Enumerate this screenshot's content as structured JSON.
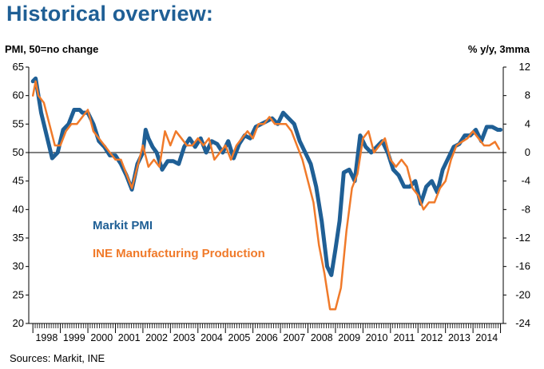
{
  "title": "Historical overview:",
  "source": "Sources: Markit, INE",
  "chart_data": {
    "type": "line",
    "left_axis_label": "PMI, 50=no change",
    "right_axis_label": "% y/y, 3mma",
    "left_ticks": [
      "65",
      "60",
      "55",
      "50",
      "45",
      "40",
      "35",
      "30",
      "25",
      "20"
    ],
    "right_ticks": [
      "12",
      "8",
      "4",
      "0",
      "-4",
      "-8",
      "-12",
      "-16",
      "-20",
      "-24"
    ],
    "ylim_left": [
      20,
      65
    ],
    "ylim_right": [
      -24,
      12
    ],
    "reference_line_left": 50,
    "x_labels": [
      "1998",
      "1999",
      "2000",
      "2001",
      "2002",
      "2003",
      "2004",
      "2005",
      "2006",
      "2007",
      "2008",
      "2009",
      "2010",
      "2011",
      "2012",
      "2013",
      "2014"
    ],
    "series": [
      {
        "name": "Markit PMI",
        "axis": "left",
        "color": "#1f5f95",
        "x": [
          1998.0,
          1998.1,
          1998.2,
          1998.3,
          1998.5,
          1998.7,
          1998.9,
          1999.0,
          1999.1,
          1999.3,
          1999.5,
          1999.7,
          1999.8,
          2000.0,
          2000.2,
          2000.4,
          2000.6,
          2000.8,
          2001.0,
          2001.2,
          2001.4,
          2001.6,
          2001.8,
          2002.0,
          2002.1,
          2002.2,
          2002.35,
          2002.5,
          2002.7,
          2002.9,
          2003.1,
          2003.3,
          2003.5,
          2003.7,
          2003.9,
          2004.1,
          2004.3,
          2004.5,
          2004.7,
          2004.9,
          2005.1,
          2005.3,
          2005.5,
          2005.7,
          2005.9,
          2006.1,
          2006.3,
          2006.5,
          2006.7,
          2006.9,
          2007.1,
          2007.3,
          2007.5,
          2007.7,
          2007.9,
          2008.1,
          2008.3,
          2008.5,
          2008.7,
          2008.85,
          2009.0,
          2009.15,
          2009.3,
          2009.5,
          2009.7,
          2009.9,
          2010.1,
          2010.3,
          2010.5,
          2010.7,
          2010.9,
          2011.1,
          2011.3,
          2011.5,
          2011.7,
          2011.9,
          2012.1,
          2012.3,
          2012.5,
          2012.7,
          2012.9,
          2013.1,
          2013.3,
          2013.5,
          2013.7,
          2013.9,
          2014.1,
          2014.3,
          2014.5,
          2014.7,
          2014.9,
          2015.0
        ],
        "values": [
          62.5,
          63,
          60,
          57,
          53,
          49,
          50,
          52,
          54,
          55,
          57.5,
          57.5,
          57,
          57,
          55,
          52,
          51,
          49.5,
          49.5,
          48,
          46,
          43.5,
          48,
          50,
          54,
          52.5,
          51,
          50,
          47,
          48.5,
          48.5,
          48,
          51,
          52.5,
          51,
          52.5,
          50,
          52,
          51.5,
          50,
          52,
          49,
          51.5,
          53,
          52.5,
          54.5,
          55,
          55.5,
          56,
          55,
          57,
          56,
          55,
          52,
          50,
          48,
          44,
          38,
          30,
          28.5,
          33,
          38,
          46.5,
          47,
          45,
          53,
          51,
          50,
          51,
          52,
          50,
          47,
          46,
          44,
          44,
          45,
          41,
          44,
          45,
          43,
          47,
          49,
          51,
          51.5,
          53,
          53,
          54,
          52,
          54.5,
          54.5,
          54,
          54
        ]
      },
      {
        "name": "INE Manufacturing Production",
        "axis": "right",
        "color": "#f07a2a",
        "x": [
          1998.0,
          1998.1,
          1998.2,
          1998.4,
          1998.6,
          1998.8,
          1999.0,
          1999.2,
          1999.4,
          1999.6,
          1999.8,
          2000.0,
          2000.2,
          2000.4,
          2000.6,
          2000.8,
          2001.0,
          2001.2,
          2001.4,
          2001.6,
          2001.8,
          2002.0,
          2002.2,
          2002.4,
          2002.6,
          2002.8,
          2003.0,
          2003.2,
          2003.4,
          2003.6,
          2003.8,
          2004.0,
          2004.2,
          2004.4,
          2004.6,
          2004.8,
          2005.0,
          2005.2,
          2005.4,
          2005.6,
          2005.8,
          2006.0,
          2006.2,
          2006.4,
          2006.6,
          2006.8,
          2007.0,
          2007.2,
          2007.4,
          2007.6,
          2007.8,
          2008.0,
          2008.2,
          2008.4,
          2008.6,
          2008.8,
          2009.0,
          2009.2,
          2009.4,
          2009.6,
          2009.8,
          2010.0,
          2010.2,
          2010.4,
          2010.6,
          2010.8,
          2011.0,
          2011.2,
          2011.4,
          2011.6,
          2011.8,
          2012.0,
          2012.2,
          2012.4,
          2012.6,
          2012.8,
          2013.0,
          2013.2,
          2013.4,
          2013.6,
          2013.8,
          2014.0,
          2014.2,
          2014.4,
          2014.6,
          2014.8,
          2014.95
        ],
        "values": [
          8,
          10,
          8,
          7,
          4,
          1,
          1,
          3,
          4,
          4,
          5,
          6,
          3,
          2,
          1,
          0,
          -1,
          -1,
          -3,
          -5,
          -2,
          1,
          -2,
          -1,
          -2,
          3,
          1,
          3,
          2,
          1,
          1,
          2,
          1,
          2,
          -1,
          0,
          1,
          -1,
          1,
          2,
          3,
          2,
          4,
          4,
          5,
          4,
          4,
          4,
          3,
          1,
          -1,
          -4,
          -7,
          -13,
          -17,
          -22,
          -22,
          -19,
          -11,
          -5,
          -3,
          2,
          3,
          0,
          1,
          2,
          -1,
          -2,
          -1,
          -2,
          -5,
          -6,
          -8,
          -7,
          -7,
          -5,
          -4,
          -1,
          1,
          1.5,
          2,
          3,
          2,
          1,
          1,
          1.5,
          0.5
        ]
      }
    ]
  }
}
